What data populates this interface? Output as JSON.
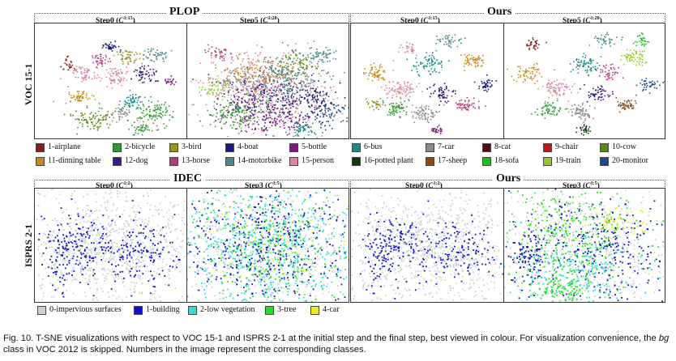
{
  "top": {
    "groups": [
      {
        "title": "PLOP",
        "steps": [
          {
            "name": "Step0",
            "open": " (",
            "sym": "C",
            "sup": "1:15",
            "close": ")"
          },
          {
            "name": "Step5",
            "open": " (",
            "sym": "C",
            "sup": "1:20",
            "close": ")"
          }
        ]
      },
      {
        "title": "Ours",
        "steps": [
          {
            "name": "Step0",
            "open": " (",
            "sym": "C",
            "sup": "1:15",
            "close": ")"
          },
          {
            "name": "Step5",
            "open": " (",
            "sym": "C",
            "sup": "1:20",
            "close": ")"
          }
        ]
      }
    ],
    "row_label": "VOC 15-1"
  },
  "bottom": {
    "groups": [
      {
        "title": "IDEC",
        "steps": [
          {
            "name": "Step0",
            "open": " (",
            "sym": "C",
            "sup": "1:2",
            "close": ")"
          },
          {
            "name": "Step3",
            "open": " (",
            "sym": "C",
            "sup": "1:5",
            "close": ")"
          }
        ]
      },
      {
        "title": "Ours",
        "steps": [
          {
            "name": "Step0",
            "open": " (",
            "sym": "C",
            "sup": "1:2",
            "close": ")"
          },
          {
            "name": "Step3",
            "open": " (",
            "sym": "C",
            "sup": "1:5",
            "close": ")"
          }
        ]
      }
    ],
    "row_label": "ISPRS 2-1"
  },
  "voc_legend": [
    {
      "label": "1-airplane",
      "color": "#8b1a1a"
    },
    {
      "label": "2-bicycle",
      "color": "#2e9a2e"
    },
    {
      "label": "3-bird",
      "color": "#9b9220"
    },
    {
      "label": "4-boat",
      "color": "#1a1a7a"
    },
    {
      "label": "5-bottle",
      "color": "#7a1a7a"
    },
    {
      "label": "6-bus",
      "color": "#1a8a8a"
    },
    {
      "label": "7-car",
      "color": "#8a8a8a"
    },
    {
      "label": "8-cat",
      "color": "#4a1010"
    },
    {
      "label": "9-chair",
      "color": "#c01818"
    },
    {
      "label": "10-cow",
      "color": "#5a8a1a"
    },
    {
      "label": "11-dinning table",
      "color": "#c88a18"
    },
    {
      "label": "12-dog",
      "color": "#3a1a7a"
    },
    {
      "label": "13-horse",
      "color": "#b03a7a"
    },
    {
      "label": "14-motorbike",
      "color": "#4a8a8a"
    },
    {
      "label": "15-person",
      "color": "#d8889a"
    },
    {
      "label": "16-potted plant",
      "color": "#0a3a0a"
    },
    {
      "label": "17-sheep",
      "color": "#8a4a10"
    },
    {
      "label": "18-sofa",
      "color": "#18c018"
    },
    {
      "label": "19-train",
      "color": "#98c828"
    },
    {
      "label": "20-monitor",
      "color": "#1a4a8a"
    }
  ],
  "isprs_legend": [
    {
      "label": "0-impervious surfaces",
      "color": "#cfcfcf"
    },
    {
      "label": "1-building",
      "color": "#1010d0"
    },
    {
      "label": "2-low vegetation",
      "color": "#28e0e0"
    },
    {
      "label": "3-tree",
      "color": "#22e022"
    },
    {
      "label": "4-car",
      "color": "#f0f020"
    }
  ],
  "caption": {
    "part1": "Fig. 10. T-SNE visualizations with respect to VOC 15-1 and ISPRS 2-1 at the initial step and the final step, best viewed in colour. For visualization convenience, the ",
    "italic": "bg",
    "part2": " class in VOC 2012 is skipped. Numbers in the image represent the corresponding classes."
  }
}
